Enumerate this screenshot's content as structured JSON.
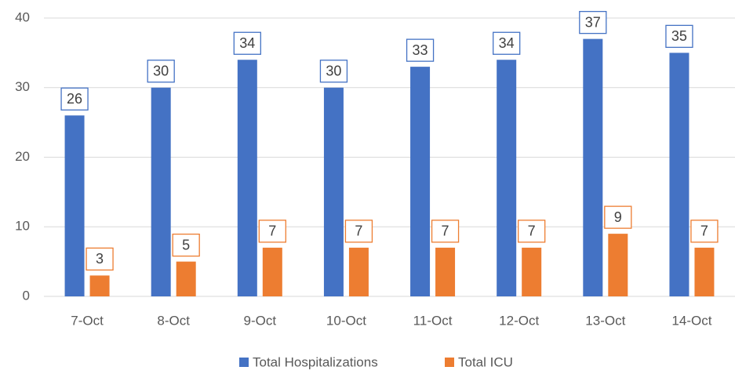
{
  "chart_data": {
    "type": "bar",
    "categories": [
      "7-Oct",
      "8-Oct",
      "9-Oct",
      "10-Oct",
      "11-Oct",
      "12-Oct",
      "13-Oct",
      "14-Oct"
    ],
    "series": [
      {
        "name": "Total Hospitalizations",
        "color": "#4472c4",
        "values": [
          26,
          30,
          34,
          30,
          33,
          34,
          37,
          35
        ]
      },
      {
        "name": "Total ICU",
        "color": "#ed7d31",
        "values": [
          3,
          5,
          7,
          7,
          7,
          7,
          9,
          7
        ]
      }
    ],
    "ylim": [
      0,
      40
    ],
    "yticks": [
      0,
      10,
      20,
      30,
      40
    ],
    "grid": true,
    "legend": "bottom"
  }
}
